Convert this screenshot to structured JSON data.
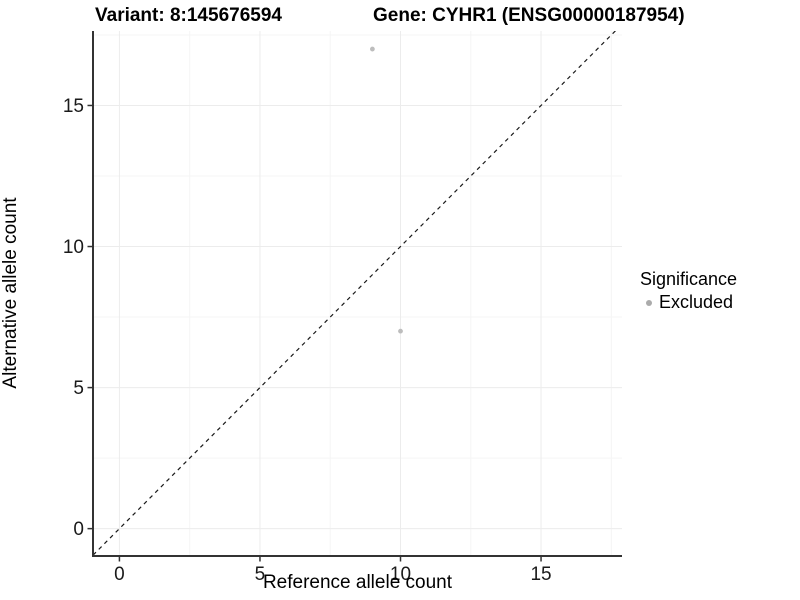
{
  "titles": {
    "variant": "Variant: 8:145676594",
    "gene": "Gene: CYHR1 (ENSG00000187954)"
  },
  "chart_data": {
    "type": "scatter",
    "title_left": "Variant: 8:145676594",
    "title_right": "Gene: CYHR1 (ENSG00000187954)",
    "xlabel": "Reference allele count",
    "ylabel": "Alternative allele count",
    "xlim": [
      -0.94,
      17.88
    ],
    "ylim": [
      -0.97,
      17.64
    ],
    "x_ticks": [
      0,
      5,
      10,
      15
    ],
    "y_ticks": [
      0,
      5,
      10,
      15
    ],
    "x_minor_ticks": [
      2.5,
      7.5,
      12.5,
      17.5
    ],
    "y_minor_ticks": [
      2.5,
      7.5,
      12.5,
      17.5
    ],
    "grid": true,
    "reference_line": {
      "slope": 1,
      "intercept": 0,
      "style": "dashed"
    },
    "series": [
      {
        "name": "Excluded",
        "points": [
          {
            "x": 9,
            "y": 17
          },
          {
            "x": 10,
            "y": 7
          }
        ],
        "color": "#bdbdbd",
        "point_radius": 2.4
      }
    ],
    "legend": {
      "position": "right",
      "title": "Significance",
      "entries": [
        {
          "label": "Excluded",
          "color": "#ababab"
        }
      ]
    },
    "colors": {
      "background": "#ffffff",
      "grid_major": "#ececec",
      "grid_minor": "#f5f5f5",
      "axis_line": "#333333",
      "tick_mark": "#333333",
      "tick_label": "#1a1a1a",
      "reference_line": "#1a1a1a"
    }
  }
}
